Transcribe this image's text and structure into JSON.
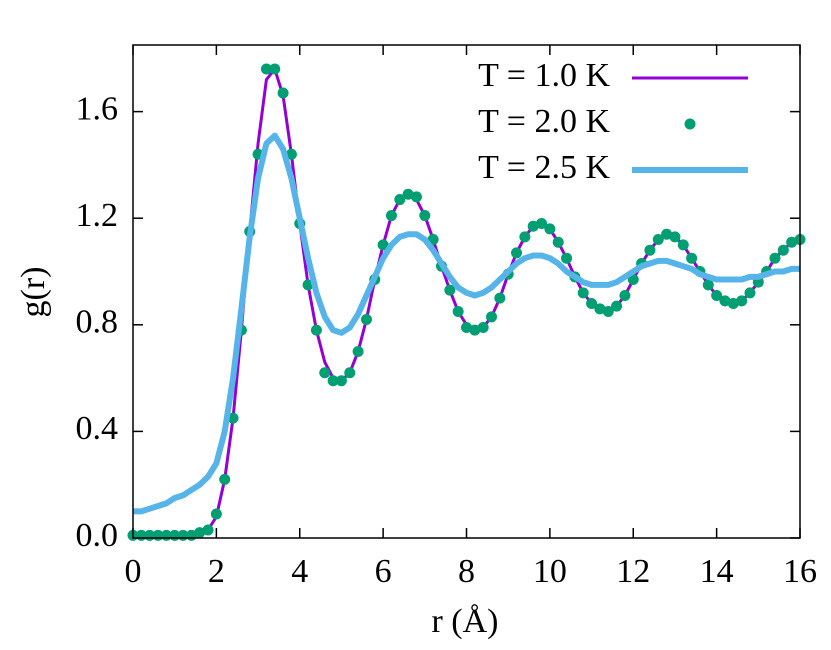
{
  "chart_data": {
    "type": "line",
    "xlabel": "r (Å)",
    "ylabel": "g(r)",
    "x": [
      0,
      0.2,
      0.4,
      0.6,
      0.8,
      1,
      1.2,
      1.4,
      1.6,
      1.8,
      2,
      2.2,
      2.4,
      2.6,
      2.8,
      3,
      3.2,
      3.4,
      3.6,
      3.8,
      4,
      4.2,
      4.4,
      4.6,
      4.8,
      5,
      5.2,
      5.4,
      5.6,
      5.8,
      6,
      6.2,
      6.4,
      6.6,
      6.8,
      7,
      7.2,
      7.4,
      7.6,
      7.8,
      8,
      8.2,
      8.4,
      8.6,
      8.8,
      9,
      9.2,
      9.4,
      9.6,
      9.8,
      10,
      10.2,
      10.4,
      10.6,
      10.8,
      11,
      11.2,
      11.4,
      11.6,
      11.8,
      12,
      12.2,
      12.4,
      12.6,
      12.8,
      13,
      13.2,
      13.4,
      13.6,
      13.8,
      14,
      14.2,
      14.4,
      14.6,
      14.8,
      15,
      15.2,
      15.4,
      15.6,
      15.8,
      16
    ],
    "series": [
      {
        "name": "T = 1.0 K",
        "color": "#9400d3",
        "mode": "line",
        "values": [
          0.01,
          0.01,
          0.01,
          0.01,
          0.01,
          0.01,
          0.01,
          0.01,
          0.01,
          0.03,
          0.08,
          0.22,
          0.45,
          0.78,
          1.15,
          1.48,
          1.72,
          1.76,
          1.66,
          1.44,
          1.18,
          0.95,
          0.78,
          0.66,
          0.6,
          0.59,
          0.62,
          0.7,
          0.82,
          0.97,
          1.1,
          1.21,
          1.27,
          1.29,
          1.27,
          1.21,
          1.12,
          1.02,
          0.93,
          0.85,
          0.8,
          0.78,
          0.79,
          0.83,
          0.9,
          0.99,
          1.07,
          1.13,
          1.17,
          1.18,
          1.16,
          1.11,
          1.05,
          0.98,
          0.92,
          0.88,
          0.86,
          0.85,
          0.87,
          0.91,
          0.97,
          1.03,
          1.08,
          1.12,
          1.14,
          1.13,
          1.1,
          1.05,
          1,
          0.95,
          0.91,
          0.89,
          0.88,
          0.89,
          0.92,
          0.96,
          1,
          1.05,
          1.08,
          1.11,
          1.12
        ]
      },
      {
        "name": "T = 2.0 K",
        "color": "#009e73",
        "mode": "markers",
        "values": [
          0.01,
          0.01,
          0.01,
          0.01,
          0.01,
          0.01,
          0.01,
          0.01,
          0.02,
          0.03,
          0.09,
          0.22,
          0.45,
          0.78,
          1.15,
          1.44,
          1.76,
          1.76,
          1.67,
          1.44,
          1.18,
          0.95,
          0.78,
          0.62,
          0.59,
          0.59,
          0.62,
          0.7,
          0.82,
          0.97,
          1.1,
          1.21,
          1.27,
          1.29,
          1.28,
          1.21,
          1.12,
          1.02,
          0.93,
          0.85,
          0.79,
          0.78,
          0.79,
          0.83,
          0.9,
          0.99,
          1.07,
          1.13,
          1.17,
          1.18,
          1.16,
          1.11,
          1.05,
          0.98,
          0.92,
          0.88,
          0.86,
          0.85,
          0.87,
          0.91,
          0.97,
          1.03,
          1.08,
          1.12,
          1.14,
          1.13,
          1.1,
          1.05,
          1,
          0.95,
          0.91,
          0.89,
          0.88,
          0.89,
          0.92,
          0.96,
          1,
          1.05,
          1.08,
          1.11,
          1.12
        ]
      },
      {
        "name": "T = 2.5 K",
        "color": "#56b4e9",
        "mode": "line",
        "values": [
          0.1,
          0.1,
          0.11,
          0.12,
          0.13,
          0.15,
          0.16,
          0.18,
          0.2,
          0.23,
          0.28,
          0.4,
          0.6,
          0.86,
          1.13,
          1.35,
          1.48,
          1.51,
          1.46,
          1.35,
          1.2,
          1.05,
          0.92,
          0.83,
          0.78,
          0.77,
          0.79,
          0.84,
          0.91,
          0.98,
          1.05,
          1.1,
          1.13,
          1.14,
          1.14,
          1.12,
          1.08,
          1.03,
          0.98,
          0.94,
          0.92,
          0.91,
          0.92,
          0.94,
          0.97,
          1,
          1.03,
          1.05,
          1.06,
          1.06,
          1.05,
          1.03,
          1,
          0.98,
          0.96,
          0.95,
          0.95,
          0.95,
          0.96,
          0.98,
          1,
          1.02,
          1.03,
          1.04,
          1.04,
          1.03,
          1.02,
          1.01,
          0.99,
          0.98,
          0.97,
          0.97,
          0.97,
          0.97,
          0.98,
          0.98,
          0.99,
          1,
          1,
          1.01,
          1.01
        ]
      }
    ],
    "xlim": [
      0,
      16
    ],
    "xticks": [
      0,
      2,
      4,
      6,
      8,
      10,
      12,
      14,
      16
    ],
    "ylim": [
      0,
      1.85
    ],
    "yticks": [
      {
        "value": 0,
        "label": "0.0"
      },
      0.4,
      0.8,
      1.2,
      1.6
    ],
    "legend": "top right",
    "grid": false
  }
}
